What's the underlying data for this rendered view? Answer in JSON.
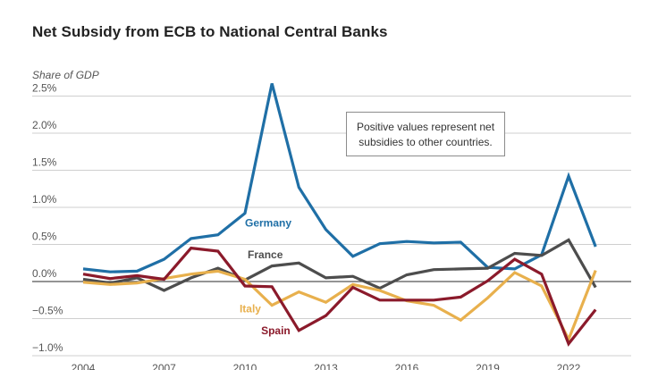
{
  "title": "Net Subsidy from ECB to National Central Banks",
  "annotation": "Positive values represent net subsidies to other countries.",
  "chart_data": {
    "type": "line",
    "title": "Net Subsidy from ECB to National Central Banks",
    "ylabel": "Share of GDP",
    "xlabel": "",
    "ylim": [
      -1.0,
      2.6
    ],
    "xlim": [
      2003.8,
      2023.5
    ],
    "grid": true,
    "legend": "inline labels",
    "y_ticks": [
      -1.0,
      -0.5,
      0.0,
      0.5,
      1.0,
      1.5,
      2.0,
      2.5
    ],
    "y_tick_labels": [
      "−1.0%",
      "−0.5%",
      "0.0%",
      "0.5%",
      "1.0%",
      "1.5%",
      "2.0%",
      "2.5%"
    ],
    "x_ticks": [
      2004,
      2007,
      2010,
      2013,
      2016,
      2019,
      2022
    ],
    "x_tick_labels": [
      "2004",
      "2007",
      "2010",
      "2013",
      "2016",
      "2019",
      "2022"
    ],
    "x": [
      2004,
      2005,
      2006,
      2007,
      2008,
      2009,
      2010,
      2011,
      2012,
      2013,
      2014,
      2015,
      2016,
      2017,
      2018,
      2019,
      2020,
      2021,
      2022,
      2023
    ],
    "series": [
      {
        "name": "Germany",
        "color": "#1f6fa6",
        "values": [
          0.17,
          0.13,
          0.14,
          0.3,
          0.58,
          0.63,
          0.92,
          2.67,
          1.27,
          0.7,
          0.34,
          0.51,
          0.54,
          0.52,
          0.53,
          0.19,
          0.17,
          0.36,
          1.42,
          0.47
        ]
      },
      {
        "name": "France",
        "color": "#4d4d4d",
        "values": [
          0.03,
          -0.02,
          0.05,
          -0.12,
          0.05,
          0.18,
          0.02,
          0.21,
          0.25,
          0.05,
          0.07,
          -0.09,
          0.09,
          0.16,
          0.17,
          0.18,
          0.38,
          0.35,
          0.56,
          -0.08
        ]
      },
      {
        "name": "Italy",
        "color": "#e8b04d",
        "values": [
          -0.01,
          -0.04,
          -0.02,
          0.04,
          0.1,
          0.14,
          0.03,
          -0.32,
          -0.14,
          -0.28,
          -0.04,
          -0.12,
          -0.26,
          -0.32,
          -0.52,
          -0.22,
          0.12,
          -0.06,
          -0.78,
          0.15
        ]
      },
      {
        "name": "Spain",
        "color": "#8b1a2b",
        "values": [
          0.1,
          0.04,
          0.08,
          0.03,
          0.45,
          0.41,
          -0.06,
          -0.07,
          -0.66,
          -0.46,
          -0.08,
          -0.25,
          -0.25,
          -0.25,
          -0.21,
          0.01,
          0.3,
          0.1,
          -0.84,
          -0.38
        ]
      }
    ],
    "series_labels": [
      {
        "name": "Germany",
        "x": 2010.0,
        "y": 0.79
      },
      {
        "name": "France",
        "x": 2010.1,
        "y": 0.36
      },
      {
        "name": "Italy",
        "x": 2009.8,
        "y": -0.37
      },
      {
        "name": "Spain",
        "x": 2010.6,
        "y": -0.66
      }
    ]
  }
}
